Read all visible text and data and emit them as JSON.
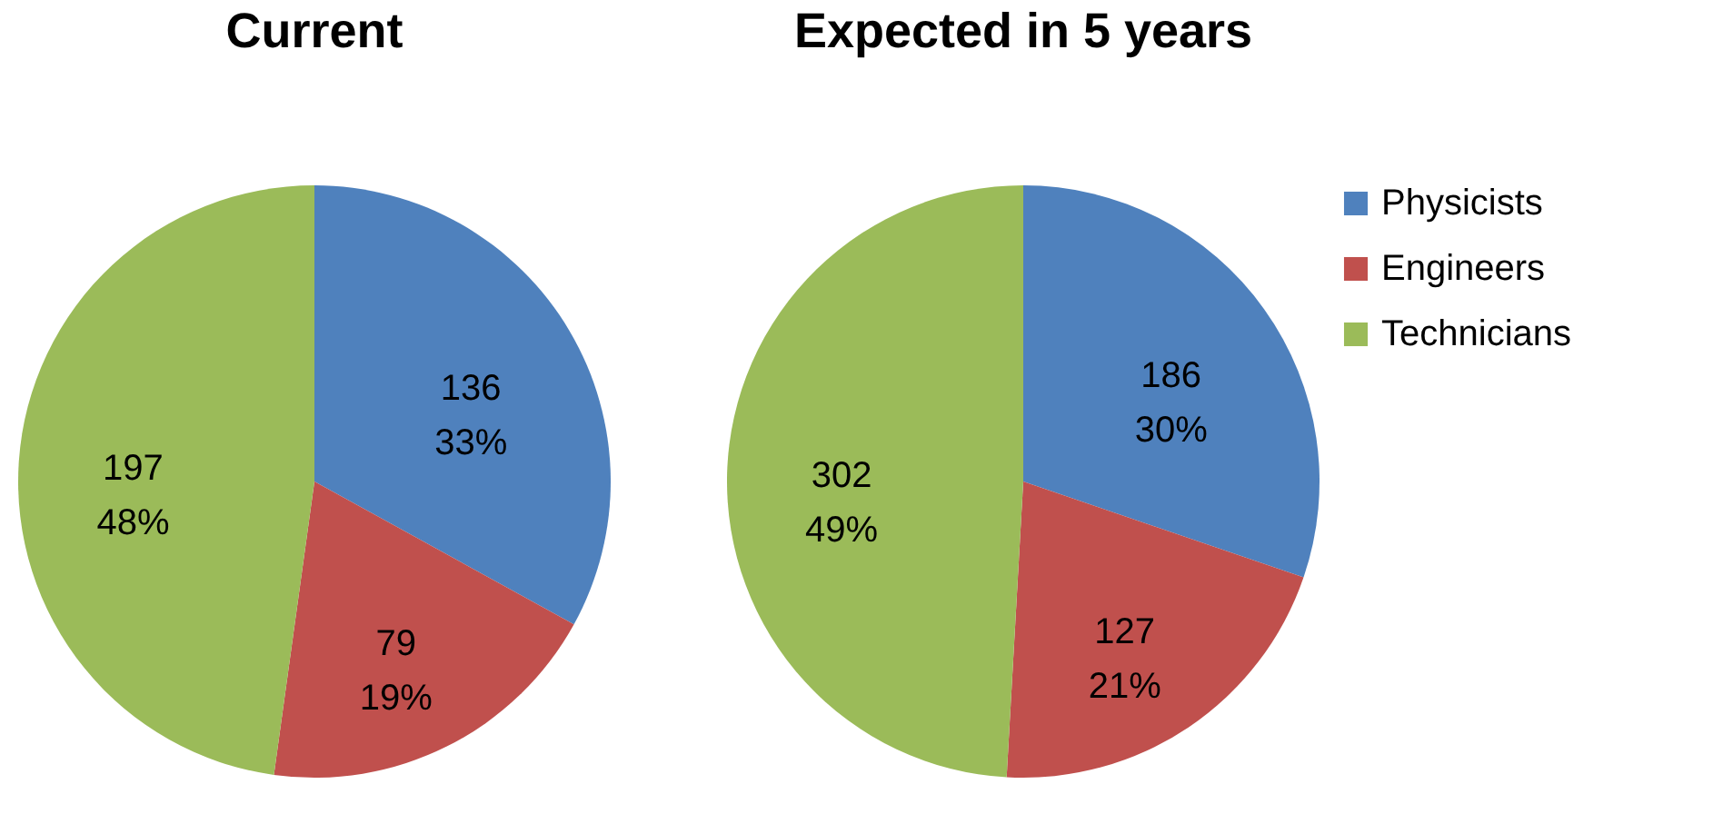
{
  "chart_data": [
    {
      "type": "pie",
      "title": "Current",
      "categories": [
        null,
        null,
        null
      ],
      "values": [
        136,
        79,
        197
      ],
      "colors": [
        "#4f81bd",
        "#c0504d",
        "#9bbb59"
      ],
      "value_labels": [
        "136\n33%",
        "79\n19%",
        "197\n48%"
      ],
      "legend": false
    },
    {
      "type": "pie",
      "title": "Expected in 5 years",
      "categories": [
        "Physicists",
        "Engineers",
        "Technicians"
      ],
      "values": [
        186,
        127,
        302
      ],
      "colors": [
        "#4f81bd",
        "#c0504d",
        "#9bbb59"
      ],
      "value_labels": [
        "186\n30%",
        "127\n21%",
        "302\n49%"
      ],
      "legend": "right"
    }
  ]
}
